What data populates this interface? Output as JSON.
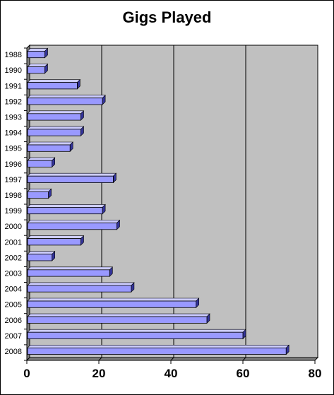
{
  "chart_data": {
    "type": "bar",
    "orientation": "horizontal",
    "title": "Gigs Played",
    "xlabel": "",
    "ylabel": "",
    "categories": [
      "1988",
      "1990",
      "1991",
      "1992",
      "1993",
      "1994",
      "1995",
      "1996",
      "1997",
      "1998",
      "1999",
      "2000",
      "2001",
      "2002",
      "2003",
      "2004",
      "2005",
      "2006",
      "2007",
      "2008"
    ],
    "values": [
      5,
      5,
      14,
      21,
      15,
      15,
      12,
      7,
      24,
      6,
      21,
      25,
      15,
      7,
      23,
      29,
      47,
      50,
      60,
      72
    ],
    "xlim": [
      0,
      80
    ],
    "xticks": [
      "0",
      "20",
      "40",
      "60",
      "80"
    ],
    "grid": true,
    "legend": "none",
    "colors": {
      "plot_background": "#c0c0c0",
      "bar_fill": "#9999ff",
      "bar_side": "#333399",
      "bar_top": "#ccccff",
      "gridline": "#000000",
      "floor": "#808080"
    }
  }
}
